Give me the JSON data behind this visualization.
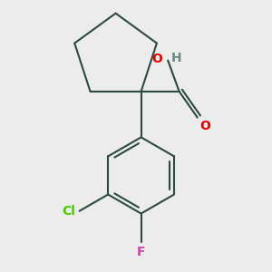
{
  "background_color": "#ececec",
  "bond_color": "#2d4a3e",
  "O_color": "#dd0000",
  "H_color": "#6a8a7a",
  "Cl_color": "#44cc00",
  "F_color": "#cc44aa",
  "line_width": 1.5,
  "figsize": [
    3.0,
    3.0
  ],
  "dpi": 100,
  "xlim": [
    -1.6,
    1.8
  ],
  "ylim": [
    -2.6,
    1.6
  ]
}
